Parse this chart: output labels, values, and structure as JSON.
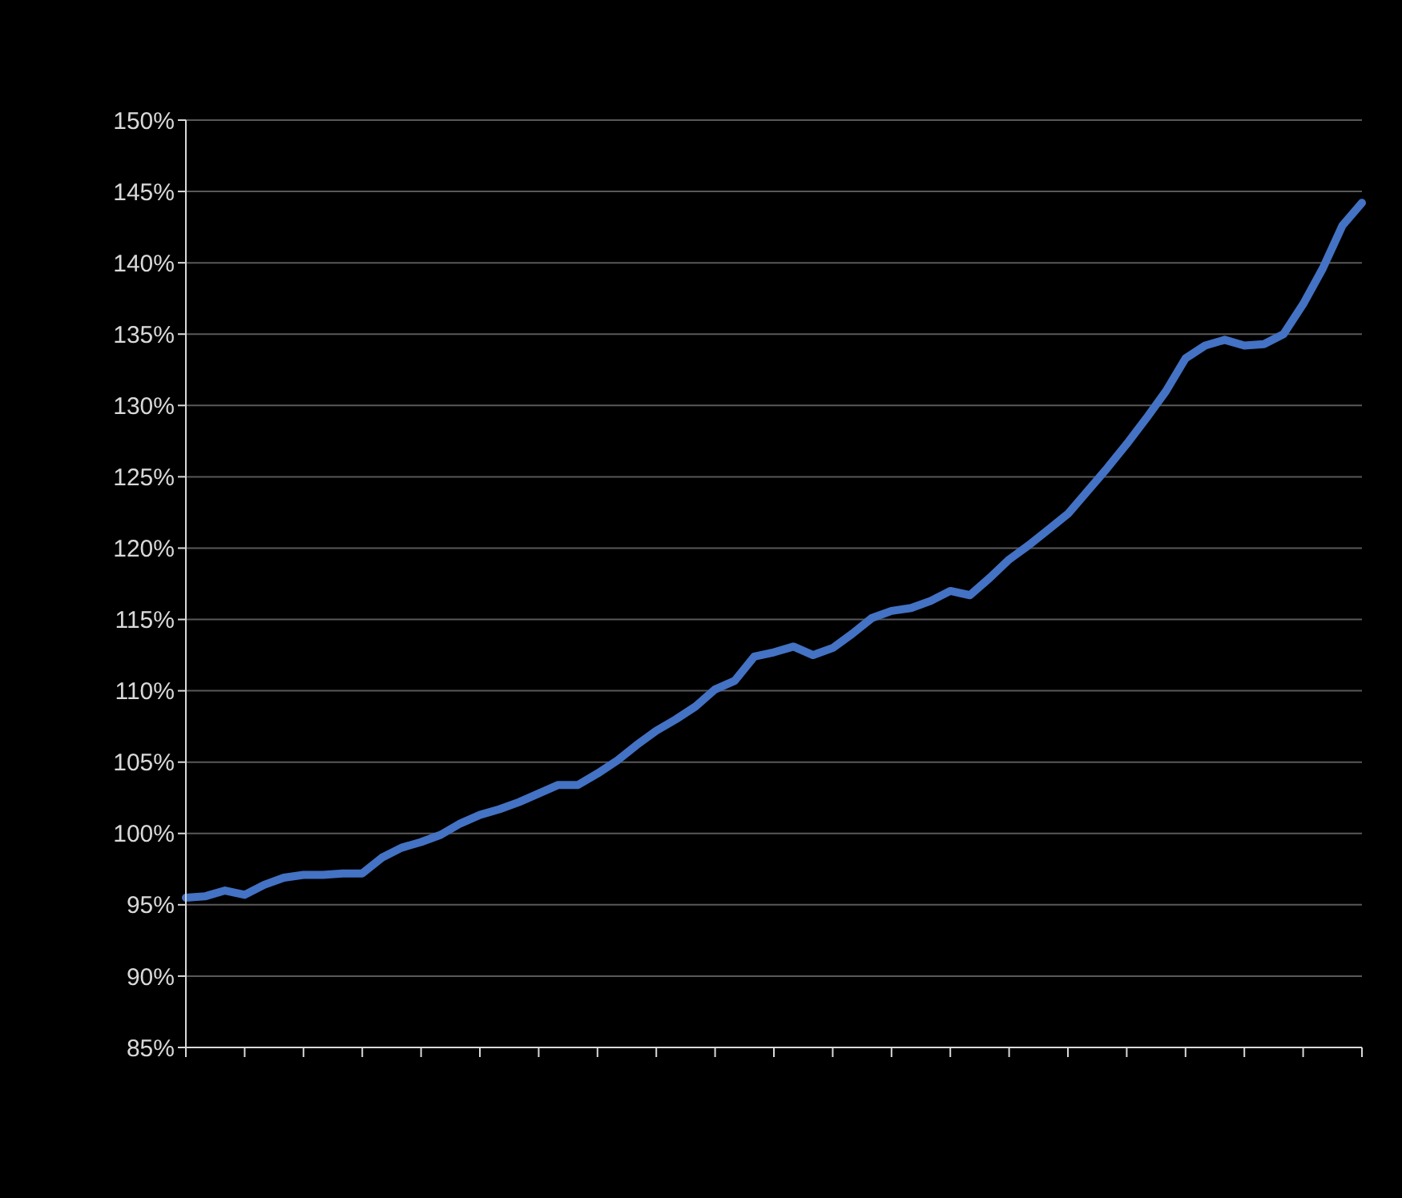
{
  "chart_data": {
    "type": "line",
    "categories": [
      null,
      null,
      null,
      null,
      null,
      null,
      null,
      null,
      null,
      null,
      null,
      null,
      null,
      null,
      null,
      null,
      null,
      null,
      null,
      null,
      null,
      null,
      null,
      null,
      null,
      null,
      null,
      null,
      null,
      null,
      null,
      null,
      null,
      null,
      null,
      null,
      null,
      null,
      null,
      null,
      null,
      null,
      null,
      null,
      null,
      null,
      null,
      null,
      null,
      null,
      null,
      null,
      null,
      null,
      null,
      null,
      null,
      null,
      null,
      null,
      null
    ],
    "series": [
      {
        "color": "#4472c4",
        "values": [
          95.5,
          95.6,
          96.0,
          95.7,
          96.4,
          96.9,
          97.1,
          97.1,
          97.2,
          97.2,
          98.3,
          99.0,
          99.4,
          99.9,
          100.7,
          101.3,
          101.7,
          102.2,
          102.8,
          103.4,
          103.4,
          104.2,
          105.1,
          106.2,
          107.2,
          108.0,
          108.9,
          110.1,
          110.7,
          112.4,
          112.7,
          113.1,
          112.5,
          113.0,
          114.0,
          115.1,
          115.6,
          115.8,
          116.3,
          117.0,
          116.7,
          117.9,
          119.2,
          120.2,
          121.3,
          122.4,
          124.0,
          125.6,
          127.3,
          129.1,
          131.0,
          133.3,
          134.2,
          134.6,
          134.2,
          134.3,
          135.0,
          137.1,
          139.6,
          142.6,
          144.2
        ]
      }
    ],
    "ylim": [
      85,
      150
    ],
    "yticks": [
      {
        "value": 85,
        "label": "85%"
      },
      {
        "value": 90,
        "label": "90%"
      },
      {
        "value": 95,
        "label": "95%"
      },
      {
        "value": 100,
        "label": "100%"
      },
      {
        "value": 105,
        "label": "105%"
      },
      {
        "value": 110,
        "label": "110%"
      },
      {
        "value": 115,
        "label": "115%"
      },
      {
        "value": 120,
        "label": "120%"
      },
      {
        "value": 125,
        "label": "125%"
      },
      {
        "value": 130,
        "label": "130%"
      },
      {
        "value": 135,
        "label": "135%"
      },
      {
        "value": 140,
        "label": "140%"
      },
      {
        "value": 145,
        "label": "145%"
      },
      {
        "value": 150,
        "label": "150%"
      }
    ],
    "grid": "y",
    "legend": false,
    "marker": "none",
    "line_style": "solid",
    "tick_labels": "y"
  }
}
